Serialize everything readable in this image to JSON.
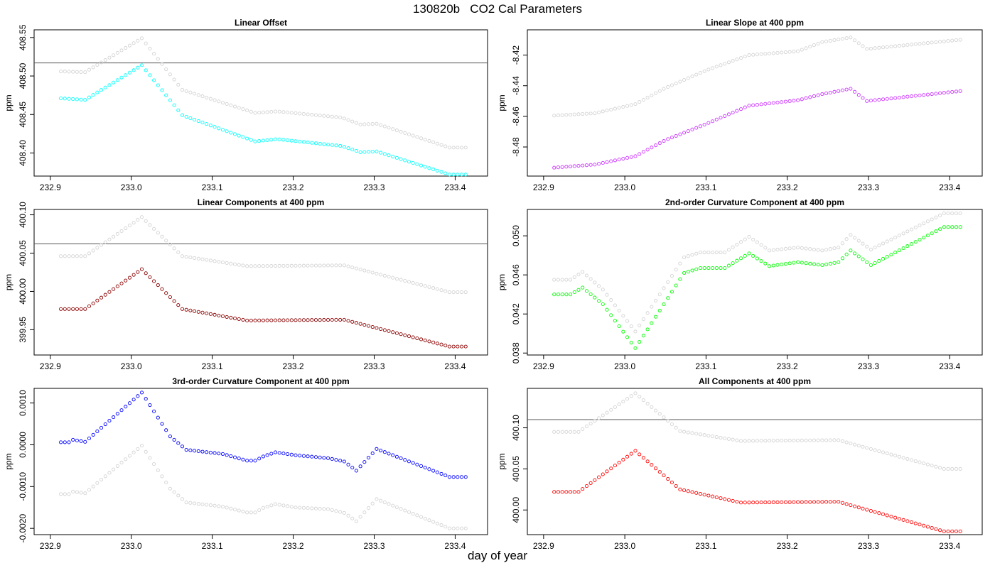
{
  "figure": {
    "title": "130820b   CO2 Cal Parameters",
    "xlabel": "day of year"
  },
  "colors": {
    "reference_series": "#d3d3d3",
    "reference_line": "#555555",
    "axis": "#000000"
  },
  "chart_data": [
    {
      "type": "scatter",
      "title": "Linear Offset",
      "xlabel": "",
      "ylabel": "ppm",
      "xlim": [
        232.88,
        233.44
      ],
      "ylim": [
        408.37,
        408.56
      ],
      "xticks": [
        232.9,
        233.0,
        233.1,
        233.2,
        233.3,
        233.4
      ],
      "xtick_labels": [
        "232.9",
        "233.0",
        "233.1",
        "233.2",
        "233.3",
        "233.4"
      ],
      "yticks": [
        408.4,
        408.45,
        408.5,
        408.55
      ],
      "ytick_labels": [
        "408.40",
        "408.45",
        "408.50",
        "408.55"
      ],
      "hline": 408.517,
      "grid": false,
      "legend": "none",
      "x_range": [
        232.913,
        233.413
      ],
      "n_points": 101,
      "series": [
        {
          "color": "#d3d3d3",
          "keypoints": [
            [
              232.913,
              408.506
            ],
            [
              232.943,
              408.505
            ],
            [
              233.013,
              408.549
            ],
            [
              233.063,
              408.482
            ],
            [
              233.153,
              408.452
            ],
            [
              233.18,
              408.454
            ],
            [
              233.26,
              408.446
            ],
            [
              233.283,
              408.437
            ],
            [
              233.303,
              408.438
            ],
            [
              233.393,
              408.407
            ],
            [
              233.413,
              408.407
            ]
          ]
        },
        {
          "color": "#00ffff",
          "keypoints": [
            [
              232.913,
              408.471
            ],
            [
              232.943,
              408.469
            ],
            [
              233.013,
              408.514
            ],
            [
              233.063,
              408.449
            ],
            [
              233.153,
              408.415
            ],
            [
              233.18,
              408.418
            ],
            [
              233.26,
              408.409
            ],
            [
              233.283,
              408.401
            ],
            [
              233.303,
              408.402
            ],
            [
              233.393,
              408.372
            ],
            [
              233.413,
              408.372
            ]
          ]
        }
      ]
    },
    {
      "type": "scatter",
      "title": "Linear Slope at 400 ppm",
      "xlabel": "",
      "ylabel": "ppm",
      "xlim": [
        232.88,
        233.44
      ],
      "ylim": [
        -8.499,
        -8.4035
      ],
      "xticks": [
        232.9,
        233.0,
        233.1,
        233.2,
        233.3,
        233.4
      ],
      "xtick_labels": [
        "232.9",
        "233.0",
        "233.1",
        "233.2",
        "233.3",
        "233.4"
      ],
      "yticks": [
        -8.48,
        -8.46,
        -8.44,
        -8.42
      ],
      "ytick_labels": [
        "-8.48",
        "-8.46",
        "-8.44",
        "-8.42"
      ],
      "grid": false,
      "legend": "none",
      "x_range": [
        232.913,
        233.413
      ],
      "n_points": 101,
      "series": [
        {
          "color": "#d3d3d3",
          "keypoints": [
            [
              232.913,
              -8.4595
            ],
            [
              232.963,
              -8.458
            ],
            [
              233.013,
              -8.452
            ],
            [
              233.05,
              -8.4415
            ],
            [
              233.1,
              -8.43
            ],
            [
              233.153,
              -8.42
            ],
            [
              233.213,
              -8.4175
            ],
            [
              233.243,
              -8.4115
            ],
            [
              233.278,
              -8.4085
            ],
            [
              233.298,
              -8.416
            ],
            [
              233.413,
              -8.41
            ]
          ]
        },
        {
          "color": "#cc33ff",
          "keypoints": [
            [
              232.913,
              -8.4935
            ],
            [
              232.963,
              -8.4915
            ],
            [
              233.013,
              -8.486
            ],
            [
              233.05,
              -8.4755
            ],
            [
              233.1,
              -8.465
            ],
            [
              233.153,
              -8.453
            ],
            [
              233.213,
              -8.4495
            ],
            [
              233.243,
              -8.4455
            ],
            [
              233.278,
              -8.442
            ],
            [
              233.298,
              -8.45
            ],
            [
              233.413,
              -8.4435
            ]
          ]
        }
      ]
    },
    {
      "type": "scatter",
      "title": "Linear Components at 400 ppm",
      "xlabel": "",
      "ylabel": "ppm",
      "xlim": [
        232.88,
        233.44
      ],
      "ylim": [
        399.917,
        400.107
      ],
      "xticks": [
        232.9,
        233.0,
        233.1,
        233.2,
        233.3,
        233.4
      ],
      "xtick_labels": [
        "232.9",
        "233.0",
        "233.1",
        "233.2",
        "233.3",
        "233.4"
      ],
      "yticks": [
        399.95,
        400.0,
        400.05,
        400.1
      ],
      "ytick_labels": [
        "399.95",
        "400.00",
        "400.05",
        "400.10"
      ],
      "hline": 400.062,
      "grid": false,
      "legend": "none",
      "x_range": [
        232.913,
        233.413
      ],
      "n_points": 101,
      "series": [
        {
          "color": "#d3d3d3",
          "keypoints": [
            [
              232.913,
              400.046
            ],
            [
              232.943,
              400.046
            ],
            [
              233.013,
              400.097
            ],
            [
              233.063,
              400.046
            ],
            [
              233.143,
              400.033
            ],
            [
              233.263,
              400.034
            ],
            [
              233.393,
              399.999
            ],
            [
              233.413,
              399.999
            ]
          ]
        },
        {
          "color": "#8b0000",
          "keypoints": [
            [
              232.913,
              399.977
            ],
            [
              232.943,
              399.977
            ],
            [
              233.013,
              400.029
            ],
            [
              233.063,
              399.977
            ],
            [
              233.143,
              399.962
            ],
            [
              233.263,
              399.963
            ],
            [
              233.393,
              399.928
            ],
            [
              233.413,
              399.928
            ]
          ]
        }
      ]
    },
    {
      "type": "scatter",
      "title": "2nd-order Curvature Component at 400 ppm",
      "xlabel": "",
      "ylabel": "ppm",
      "xlim": [
        232.88,
        233.44
      ],
      "ylim": [
        0.0378,
        0.0527
      ],
      "xticks": [
        232.9,
        233.0,
        233.1,
        233.2,
        233.3,
        233.4
      ],
      "xtick_labels": [
        "232.9",
        "233.0",
        "233.1",
        "233.2",
        "233.3",
        "233.4"
      ],
      "yticks": [
        0.038,
        0.042,
        0.046,
        0.05
      ],
      "ytick_labels": [
        "0.038",
        "0.042",
        "0.046",
        "0.050"
      ],
      "grid": false,
      "legend": "none",
      "x_range": [
        232.913,
        233.413
      ],
      "n_points": 101,
      "series": [
        {
          "color": "#d3d3d3",
          "keypoints": [
            [
              232.913,
              0.0455
            ],
            [
              232.933,
              0.0455
            ],
            [
              232.948,
              0.0463
            ],
            [
              232.973,
              0.0445
            ],
            [
              233.013,
              0.0402
            ],
            [
              233.073,
              0.0478
            ],
            [
              233.093,
              0.0483
            ],
            [
              233.123,
              0.0483
            ],
            [
              233.153,
              0.0499
            ],
            [
              233.178,
              0.0485
            ],
            [
              233.213,
              0.0488
            ],
            [
              233.243,
              0.0485
            ],
            [
              233.263,
              0.0488
            ],
            [
              233.278,
              0.0501
            ],
            [
              233.303,
              0.0486
            ],
            [
              233.393,
              0.0523
            ],
            [
              233.413,
              0.0523
            ]
          ]
        },
        {
          "color": "#00ff00",
          "keypoints": [
            [
              232.913,
              0.044
            ],
            [
              232.933,
              0.044
            ],
            [
              232.948,
              0.0447
            ],
            [
              232.973,
              0.043
            ],
            [
              233.013,
              0.0385
            ],
            [
              233.073,
              0.0462
            ],
            [
              233.093,
              0.0467
            ],
            [
              233.123,
              0.0467
            ],
            [
              233.153,
              0.0482
            ],
            [
              233.178,
              0.0469
            ],
            [
              233.213,
              0.0473
            ],
            [
              233.243,
              0.047
            ],
            [
              233.263,
              0.0473
            ],
            [
              233.278,
              0.0485
            ],
            [
              233.303,
              0.047
            ],
            [
              233.393,
              0.0509
            ],
            [
              233.413,
              0.0509
            ]
          ]
        }
      ]
    },
    {
      "type": "scatter",
      "title": "3rd-order Curvature Component at 400 ppm",
      "xlabel": "",
      "ylabel": "ppm",
      "xlim": [
        232.88,
        233.44
      ],
      "ylim": [
        -0.00215,
        0.00135
      ],
      "xticks": [
        232.9,
        233.0,
        233.1,
        233.2,
        233.3,
        233.4
      ],
      "xtick_labels": [
        "232.9",
        "233.0",
        "233.1",
        "233.2",
        "233.3",
        "233.4"
      ],
      "yticks": [
        -0.002,
        -0.001,
        0.0,
        0.001
      ],
      "ytick_labels": [
        "-0.0020",
        "-0.0010",
        "0.0000",
        "0.0010"
      ],
      "grid": false,
      "legend": "none",
      "x_range": [
        232.913,
        233.413
      ],
      "n_points": 101,
      "series": [
        {
          "color": "#d3d3d3",
          "keypoints": [
            [
              232.913,
              -0.00118
            ],
            [
              232.923,
              -0.00118
            ],
            [
              232.928,
              -0.00112
            ],
            [
              232.943,
              -0.00116
            ],
            [
              233.013,
              -2e-05
            ],
            [
              233.048,
              -0.00105
            ],
            [
              233.068,
              -0.00138
            ],
            [
              233.113,
              -0.00148
            ],
            [
              233.143,
              -0.00162
            ],
            [
              233.153,
              -0.00162
            ],
            [
              233.163,
              -0.00151
            ],
            [
              233.178,
              -0.00142
            ],
            [
              233.203,
              -0.0015
            ],
            [
              233.243,
              -0.00154
            ],
            [
              233.263,
              -0.00163
            ],
            [
              233.278,
              -0.00183
            ],
            [
              233.303,
              -0.0013
            ],
            [
              233.393,
              -0.002
            ],
            [
              233.413,
              -0.002
            ]
          ]
        },
        {
          "color": "#0000ff",
          "keypoints": [
            [
              232.913,
              6e-05
            ],
            [
              232.923,
              6e-05
            ],
            [
              232.928,
              0.00012
            ],
            [
              232.943,
              7e-05
            ],
            [
              233.013,
              0.00125
            ],
            [
              233.048,
              0.0002
            ],
            [
              233.068,
              -0.00012
            ],
            [
              233.113,
              -0.00022
            ],
            [
              233.143,
              -0.00038
            ],
            [
              233.153,
              -0.00038
            ],
            [
              233.163,
              -0.00028
            ],
            [
              233.178,
              -0.00018
            ],
            [
              233.203,
              -0.00025
            ],
            [
              233.243,
              -0.00032
            ],
            [
              233.263,
              -0.0004
            ],
            [
              233.278,
              -0.00062
            ],
            [
              233.303,
              -0.0001
            ],
            [
              233.393,
              -0.00077
            ],
            [
              233.413,
              -0.00077
            ]
          ]
        }
      ]
    },
    {
      "type": "scatter",
      "title": "All Components at 400 ppm",
      "xlabel": "",
      "ylabel": "ppm",
      "xlim": [
        232.88,
        233.44
      ],
      "ylim": [
        399.97,
        400.148
      ],
      "xticks": [
        232.9,
        233.0,
        233.1,
        233.2,
        233.3,
        233.4
      ],
      "xtick_labels": [
        "232.9",
        "233.0",
        "233.1",
        "233.2",
        "233.3",
        "233.4"
      ],
      "yticks": [
        400.0,
        400.05,
        400.1
      ],
      "ytick_labels": [
        "400.00",
        "400.05",
        "400.10"
      ],
      "hline": 400.11,
      "grid": false,
      "legend": "none",
      "x_range": [
        232.913,
        233.413
      ],
      "n_points": 101,
      "series": [
        {
          "color": "#d3d3d3",
          "keypoints": [
            [
              232.913,
              400.095
            ],
            [
              232.943,
              400.095
            ],
            [
              233.013,
              400.142
            ],
            [
              233.068,
              400.096
            ],
            [
              233.143,
              400.084
            ],
            [
              233.263,
              400.085
            ],
            [
              233.393,
              400.05
            ],
            [
              233.413,
              400.05
            ]
          ]
        },
        {
          "color": "#ff0000",
          "keypoints": [
            [
              232.913,
              400.022
            ],
            [
              232.943,
              400.022
            ],
            [
              233.013,
              400.072
            ],
            [
              233.068,
              400.025
            ],
            [
              233.143,
              400.009
            ],
            [
              233.263,
              400.01
            ],
            [
              233.393,
              399.974
            ],
            [
              233.413,
              399.974
            ]
          ]
        }
      ]
    }
  ]
}
